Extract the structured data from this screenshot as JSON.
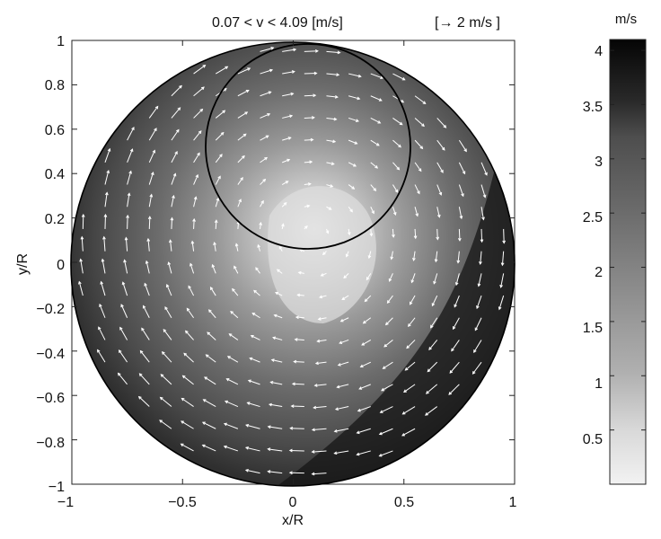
{
  "chart_data": [
    {
      "type": "heatmap",
      "title": "0.07 < v < 4.09  [m/s]",
      "reference_arrow_label": "[→ 2 m/s ]",
      "xlabel": "x/R",
      "ylabel": "y/R",
      "xlim": [
        -1,
        1
      ],
      "ylim": [
        -1,
        1
      ],
      "x_ticks": [
        -1,
        -0.5,
        0,
        0.5,
        1
      ],
      "y_ticks": [
        1,
        0.8,
        0.6,
        0.4,
        0.2,
        0,
        -0.2,
        -0.4,
        -0.6,
        -0.8,
        -1
      ],
      "x_tick_labels": [
        "−1",
        "−0.5",
        "0",
        "0.5",
        "1"
      ],
      "y_tick_labels": [
        "1",
        "0.8",
        "0.6",
        "0.4",
        "0.2",
        "0",
        "−0.2",
        "−0.4",
        "−0.6",
        "−0.8",
        "−1"
      ],
      "domain_circle": {
        "center": [
          0,
          0
        ],
        "radius": 1
      },
      "overlay_circle": {
        "center": [
          0.07,
          0.53
        ],
        "radius": 0.46
      },
      "velocity_min": 0.07,
      "velocity_max": 4.09,
      "velocity_field": "clockwise swirl; speed low near (0.1, 0.15), increasing toward the wall, highest in the lower-right region",
      "grid": false
    },
    {
      "type": "colorbar",
      "unit_label": "m/s",
      "range": [
        0,
        4.1
      ],
      "ticks": [
        0.5,
        1,
        1.5,
        2,
        2.5,
        3,
        3.5,
        4
      ],
      "tick_labels": [
        "0.5",
        "1",
        "1.5",
        "2",
        "2.5",
        "3",
        "3.5",
        "4"
      ],
      "colormap": "grayscale, light (low) to black (high)",
      "color_low": "#f2f2f2",
      "color_high": "#050505"
    }
  ]
}
